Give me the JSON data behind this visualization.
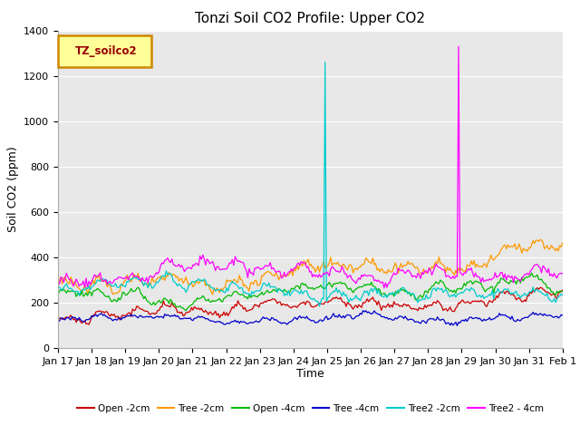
{
  "title": "Tonzi Soil CO2 Profile: Upper CO2",
  "xlabel": "Time",
  "ylabel": "Soil CO2 (ppm)",
  "ylim": [
    0,
    1400
  ],
  "yticks": [
    0,
    200,
    400,
    600,
    800,
    1000,
    1200,
    1400
  ],
  "n_points": 360,
  "series": {
    "Open -2cm": {
      "color": "#cc0000",
      "base": 170,
      "amp": 40,
      "trend": 30,
      "spike_idx": -1,
      "spike_val": 0
    },
    "Tree -2cm": {
      "color": "#ff9900",
      "base": 300,
      "amp": 60,
      "trend": 80,
      "spike_idx": -1,
      "spike_val": 0
    },
    "Open -4cm": {
      "color": "#00bb00",
      "base": 215,
      "amp": 35,
      "trend": 70,
      "spike_idx": -1,
      "spike_val": 0
    },
    "Tree -4cm": {
      "color": "#0000cc",
      "base": 110,
      "amp": 25,
      "trend": 40,
      "spike_idx": -1,
      "spike_val": 0
    },
    "Tree2 -2cm": {
      "color": "#00cccc",
      "base": 240,
      "amp": 50,
      "trend": 30,
      "spike_idx": 190,
      "spike_val": 1260
    },
    "Tree2 - 4cm": {
      "color": "#ff00ff",
      "base": 300,
      "amp": 50,
      "trend": 60,
      "spike_idx": 285,
      "spike_val": 1330
    }
  },
  "legend_box_color": "#ffff99",
  "legend_box_edge": "#cc8800",
  "legend_box_text": "TZ_soilco2",
  "bg_color": "#e8e8e8",
  "grid_color": "#ffffff",
  "title_fontsize": 11,
  "label_fontsize": 9,
  "tick_fontsize": 8,
  "day_labels": [
    "Jan 17",
    "Jan 18",
    "Jan 19",
    "Jan 20",
    "Jan 21",
    "Jan 22",
    "Jan 23",
    "Jan 24",
    "Jan 25",
    "Jan 26",
    "Jan 27",
    "Jan 28",
    "Jan 29",
    "Jan 30",
    "Jan 31",
    "Feb 1"
  ]
}
